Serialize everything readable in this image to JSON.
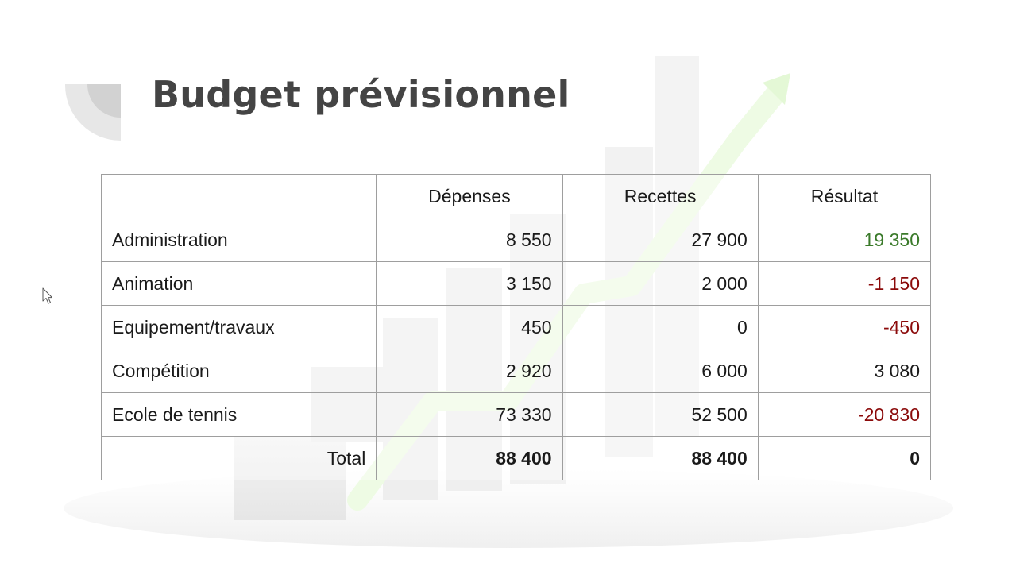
{
  "slide": {
    "title": "Budget prévisionnel"
  },
  "colors": {
    "positive": "#3a7a2a",
    "negative": "#8b0a0a",
    "neutral": "#1a1a1a",
    "title": "#444444",
    "border": "#9e9e9e"
  },
  "table": {
    "headers": [
      "",
      "Dépenses",
      "Recettes",
      "Résultat"
    ],
    "rows": [
      {
        "label": "Administration",
        "depenses": "8 550",
        "recettes": "27 900",
        "resultat": "19 350",
        "status": "positive"
      },
      {
        "label": "Animation",
        "depenses": "3 150",
        "recettes": "2 000",
        "resultat": "-1 150",
        "status": "negative"
      },
      {
        "label": "Equipement/travaux",
        "depenses": "450",
        "recettes": "0",
        "resultat": "-450",
        "status": "negative"
      },
      {
        "label": "Compétition",
        "depenses": "2 920",
        "recettes": "6 000",
        "resultat": "3 080",
        "status": "neutral"
      },
      {
        "label": "Ecole de tennis",
        "depenses": "73 330",
        "recettes": "52 500",
        "resultat": "-20 830",
        "status": "negative"
      }
    ],
    "total": {
      "label": "Total",
      "depenses": "88 400",
      "recettes": "88 400",
      "resultat": "0"
    }
  },
  "icons": {
    "cursor": "mouse-pointer-icon",
    "background": "growth-chart-arrow-icon"
  }
}
